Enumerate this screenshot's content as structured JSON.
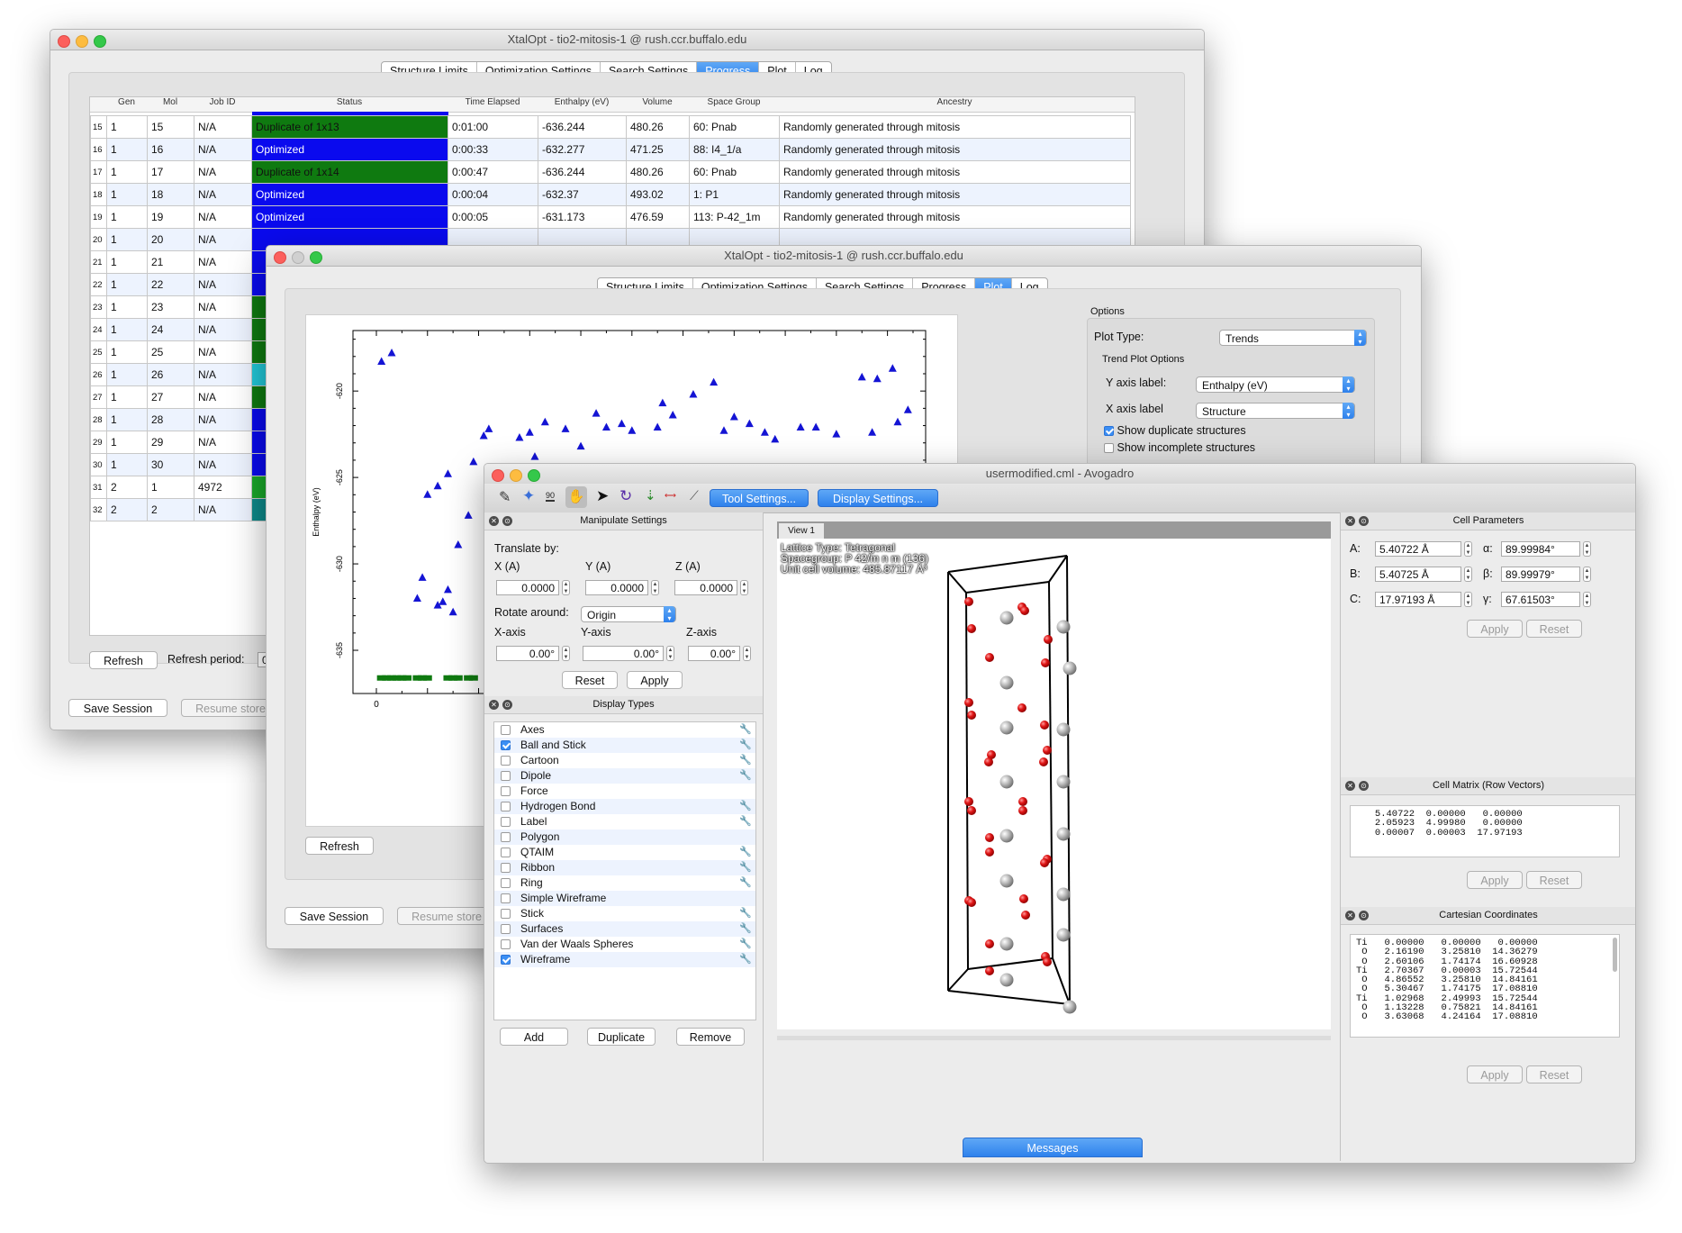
{
  "window1": {
    "title": "XtalOpt - tio2-mitosis-1 @ rush.ccr.buffalo.edu",
    "tabs": [
      "Structure Limits",
      "Optimization Settings",
      "Search Settings",
      "Progress",
      "Plot",
      "Log"
    ],
    "active_tab": "Progress",
    "columns": [
      "Gen",
      "Mol",
      "Job ID",
      "Status",
      "Time Elapsed",
      "Enthalpy (eV)",
      "Volume",
      "Space Group",
      "Ancestry"
    ],
    "rows": [
      {
        "n": "15",
        "gen": "1",
        "mol": "15",
        "job": "N/A",
        "status": "Duplicate of 1x13",
        "color": "#0f7a10",
        "time": "0:01:00",
        "enthalpy": "-636.244",
        "volume": "480.26",
        "sg": "60: Pnab",
        "ancestry": "Randomly generated through mitosis"
      },
      {
        "n": "16",
        "gen": "1",
        "mol": "16",
        "job": "N/A",
        "status": "Optimized",
        "color": "#0a0aee",
        "time": "0:00:33",
        "enthalpy": "-632.277",
        "volume": "471.25",
        "sg": "88: I4_1/a",
        "ancestry": "Randomly generated through mitosis"
      },
      {
        "n": "17",
        "gen": "1",
        "mol": "17",
        "job": "N/A",
        "status": "Duplicate of 1x14",
        "color": "#0f7a10",
        "time": "0:00:47",
        "enthalpy": "-636.244",
        "volume": "480.26",
        "sg": "60: Pnab",
        "ancestry": "Randomly generated through mitosis"
      },
      {
        "n": "18",
        "gen": "1",
        "mol": "18",
        "job": "N/A",
        "status": "Optimized",
        "color": "#0a0aee",
        "time": "0:00:04",
        "enthalpy": "-632.37",
        "volume": "493.02",
        "sg": "1: P1",
        "ancestry": "Randomly generated through mitosis"
      },
      {
        "n": "19",
        "gen": "1",
        "mol": "19",
        "job": "N/A",
        "status": "Optimized",
        "color": "#0a0aee",
        "time": "0:00:05",
        "enthalpy": "-631.173",
        "volume": "476.59",
        "sg": "113: P-42_1m",
        "ancestry": "Randomly generated through mitosis"
      },
      {
        "n": "20",
        "gen": "1",
        "mol": "20",
        "job": "N/A",
        "status": "",
        "color": "#0a0aee"
      },
      {
        "n": "21",
        "gen": "1",
        "mol": "21",
        "job": "N/A",
        "status": "",
        "color": "#0a0aee"
      },
      {
        "n": "22",
        "gen": "1",
        "mol": "22",
        "job": "N/A",
        "status": "",
        "color": "#0a0aee"
      },
      {
        "n": "23",
        "gen": "1",
        "mol": "23",
        "job": "N/A",
        "status": "",
        "color": "#0f7a10"
      },
      {
        "n": "24",
        "gen": "1",
        "mol": "24",
        "job": "N/A",
        "status": "",
        "color": "#0f7a10"
      },
      {
        "n": "25",
        "gen": "1",
        "mol": "25",
        "job": "N/A",
        "status": "",
        "color": "#0f7a10"
      },
      {
        "n": "26",
        "gen": "1",
        "mol": "26",
        "job": "N/A",
        "status": "",
        "color": "#22c8d8"
      },
      {
        "n": "27",
        "gen": "1",
        "mol": "27",
        "job": "N/A",
        "status": "",
        "color": "#0f7a10"
      },
      {
        "n": "28",
        "gen": "1",
        "mol": "28",
        "job": "N/A",
        "status": "",
        "color": "#0a0aee"
      },
      {
        "n": "29",
        "gen": "1",
        "mol": "29",
        "job": "N/A",
        "status": "",
        "color": "#0a0aee"
      },
      {
        "n": "30",
        "gen": "1",
        "mol": "30",
        "job": "N/A",
        "status": "",
        "color": "#0a0aee"
      },
      {
        "n": "31",
        "gen": "2",
        "mol": "1",
        "job": "4972",
        "status": "",
        "color": "#1aa82a"
      },
      {
        "n": "32",
        "gen": "2",
        "mol": "2",
        "job": "N/A",
        "status": "",
        "color": "#0e8a8a"
      }
    ],
    "refresh_label": "Refresh",
    "refresh_period_label": "Refresh period:",
    "refresh_period_value": "0",
    "save_session": "Save Session",
    "resume_stored": "Resume store"
  },
  "window2": {
    "title": "XtalOpt - tio2-mitosis-1 @ rush.ccr.buffalo.edu",
    "tabs": [
      "Structure Limits",
      "Optimization Settings",
      "Search Settings",
      "Progress",
      "Plot",
      "Log"
    ],
    "active_tab": "Plot",
    "options_title": "Options",
    "plot_type_label": "Plot Type:",
    "plot_type_value": "Trends",
    "trend_group": "Trend Plot Options",
    "y_axis_label": "Y axis label:",
    "y_axis_value": "Enthalpy (eV)",
    "x_axis_label": "X axis label",
    "x_axis_value": "Structure",
    "show_duplicates": "Show duplicate structures",
    "show_incomplete": "Show incomplete structures",
    "refresh_label": "Refresh",
    "save_session": "Save Session",
    "resume_stored": "Resume store"
  },
  "chart_data": {
    "type": "scatter",
    "ylabel": "Enthalpy (eV)",
    "xlabel": "",
    "y_ticks": [
      "-620",
      "-625",
      "-630",
      "-635"
    ],
    "x_ticks": [
      "0"
    ],
    "xlim": [
      0,
      105
    ],
    "ylim": [
      -637.5,
      -616.5
    ],
    "series": [
      {
        "color": "#1414d4",
        "marker": "triangle",
        "points": [
          [
            1,
            -618.3
          ],
          [
            3,
            -617.8
          ],
          [
            10,
            -626
          ],
          [
            9,
            -630.8
          ],
          [
            8,
            -632
          ],
          [
            12,
            -632.4
          ],
          [
            13,
            -632.2
          ],
          [
            14,
            -631.5
          ],
          [
            15,
            -632.8
          ],
          [
            12,
            -625.5
          ],
          [
            14,
            -624.8
          ],
          [
            16,
            -628.9
          ],
          [
            18,
            -627.2
          ],
          [
            19,
            -624.1
          ],
          [
            21,
            -622.6
          ],
          [
            22,
            -622.2
          ],
          [
            23,
            -626.7
          ],
          [
            25,
            -626
          ],
          [
            28,
            -622.7
          ],
          [
            30,
            -622.4
          ],
          [
            31,
            -623.8
          ],
          [
            33,
            -621.8
          ],
          [
            37,
            -622.2
          ],
          [
            40,
            -623.2
          ],
          [
            43,
            -621.3
          ],
          [
            45,
            -622.1
          ],
          [
            48,
            -621.9
          ],
          [
            50,
            -622.3
          ],
          [
            55,
            -622.1
          ],
          [
            56,
            -620.7
          ],
          [
            58,
            -621.4
          ],
          [
            62,
            -620.2
          ],
          [
            66,
            -619.5
          ],
          [
            68,
            -622.3
          ],
          [
            70,
            -621.5
          ],
          [
            73,
            -621.9
          ],
          [
            76,
            -622.4
          ],
          [
            78,
            -622.8
          ],
          [
            83,
            -622.1
          ],
          [
            86,
            -622.1
          ],
          [
            90,
            -622.5
          ],
          [
            95,
            -619.2
          ],
          [
            98,
            -619.3
          ],
          [
            101,
            -618.7
          ],
          [
            102,
            -621.8
          ],
          [
            97,
            -622.4
          ],
          [
            104,
            -621.1
          ]
        ]
      },
      {
        "color": "#0f7a10",
        "marker": "square",
        "points": [
          [
            1,
            -636.6
          ],
          [
            2,
            -636.6
          ],
          [
            3,
            -636.6
          ],
          [
            4,
            -636.6
          ],
          [
            5,
            -636.6
          ],
          [
            6,
            -636.6
          ],
          [
            8,
            -636.6
          ],
          [
            9,
            -636.6
          ],
          [
            10,
            -636.6
          ],
          [
            14,
            -636.6
          ],
          [
            15,
            -636.6
          ],
          [
            16,
            -636.6
          ],
          [
            18,
            -636.6
          ],
          [
            19,
            -636.6
          ]
        ]
      }
    ]
  },
  "avogadro": {
    "title": "usermodified.cml - Avogadro",
    "tool_settings": "Tool Settings...",
    "display_settings": "Display Settings...",
    "manipulate_title": "Manipulate Settings",
    "translate_by": "Translate by:",
    "xa": "X (A)",
    "ya": "Y (A)",
    "za": "Z (A)",
    "tx": "0.0000",
    "ty": "0.0000",
    "tz": "0.0000",
    "rotate_around": "Rotate around:",
    "rotate_value": "Origin",
    "xaxis": "X-axis",
    "yaxis": "Y-axis",
    "zaxis": "Z-axis",
    "rx": "0.00°",
    "ry": "0.00°",
    "rz": "0.00°",
    "reset": "Reset",
    "apply": "Apply",
    "display_types_title": "Display Types",
    "display_types": [
      {
        "name": "Axes",
        "checked": false,
        "wrench": true
      },
      {
        "name": "Ball and Stick",
        "checked": true,
        "wrench": true
      },
      {
        "name": "Cartoon",
        "checked": false,
        "wrench": true
      },
      {
        "name": "Dipole",
        "checked": false,
        "wrench": true
      },
      {
        "name": "Force",
        "checked": false,
        "wrench": false
      },
      {
        "name": "Hydrogen Bond",
        "checked": false,
        "wrench": true
      },
      {
        "name": "Label",
        "checked": false,
        "wrench": true
      },
      {
        "name": "Polygon",
        "checked": false,
        "wrench": false
      },
      {
        "name": "QTAIM",
        "checked": false,
        "wrench": true
      },
      {
        "name": "Ribbon",
        "checked": false,
        "wrench": true
      },
      {
        "name": "Ring",
        "checked": false,
        "wrench": true
      },
      {
        "name": "Simple Wireframe",
        "checked": false,
        "wrench": false
      },
      {
        "name": "Stick",
        "checked": false,
        "wrench": true
      },
      {
        "name": "Surfaces",
        "checked": false,
        "wrench": true
      },
      {
        "name": "Van der Waals Spheres",
        "checked": false,
        "wrench": true
      },
      {
        "name": "Wireframe",
        "checked": true,
        "wrench": true
      }
    ],
    "add": "Add",
    "duplicate": "Duplicate",
    "remove": "Remove",
    "view_tab": "View 1",
    "lattice_type": "Lattice Type: Tetragonal",
    "spacegroup": "Spacegroup: P 42/m n m (136)",
    "unit_cell_volume": "Unit cell volume: 485.87117 Å³",
    "messages": "Messages",
    "cell_params_title": "Cell Parameters",
    "A_label": "A:",
    "B_label": "B:",
    "C_label": "C:",
    "alpha_label": "α:",
    "beta_label": "β:",
    "gamma_label": "γ:",
    "A": "5.40722 Å",
    "B": "5.40725 Å",
    "C": "17.97193 Å",
    "alpha": "89.99984°",
    "beta": "89.99979°",
    "gamma": "67.61503°",
    "cell_matrix_title": "Cell Matrix (Row Vectors)",
    "cell_matrix": "   5.40722  0.00000   0.00000\n   2.05923  4.99980   0.00000\n   0.00007  0.00003  17.97193",
    "cart_title": "Cartesian Coordinates",
    "cart_coords": "Ti   0.00000   0.00000   0.00000\n O   2.16190   3.25810  14.36279\n O   2.60106   1.74174  16.60928\nTi   2.70367   0.00003  15.72544\n O   4.86552   3.25810  14.84161\n O   5.30467   1.74175  17.08810\nTi   1.02968   2.49993  15.72544\n O   1.13228   0.75821  14.84161\n O   3.63068   4.24164  17.08810"
  }
}
